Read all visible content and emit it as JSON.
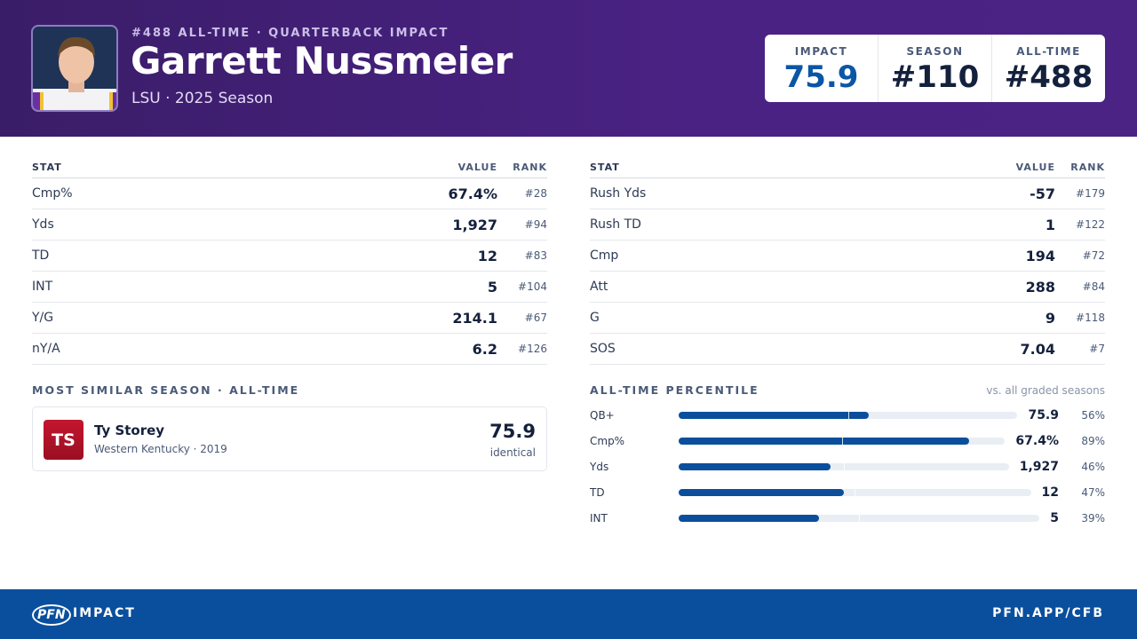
{
  "header": {
    "eyebrow": "#488 ALL-TIME · QUARTERBACK IMPACT",
    "name": "Garrett Nussmeier",
    "subtitle": "LSU · 2025 Season",
    "scores": [
      {
        "label": "IMPACT",
        "value": "75.9"
      },
      {
        "label": "SEASON",
        "value": "#110"
      },
      {
        "label": "ALL-TIME",
        "value": "#488"
      }
    ]
  },
  "left_table": {
    "headers": [
      "STAT",
      "VALUE",
      "RANK"
    ],
    "rows": [
      [
        "Cmp%",
        "67.4%",
        "#28"
      ],
      [
        "Yds",
        "1,927",
        "#94"
      ],
      [
        "TD",
        "12",
        "#83"
      ],
      [
        "INT",
        "5",
        "#104"
      ],
      [
        "Y/G",
        "214.1",
        "#67"
      ],
      [
        "nY/A",
        "6.2",
        "#126"
      ]
    ]
  },
  "right_table": {
    "headers": [
      "STAT",
      "VALUE",
      "RANK"
    ],
    "rows": [
      [
        "Rush Yds",
        "-57",
        "#179"
      ],
      [
        "Rush TD",
        "1",
        "#122"
      ],
      [
        "Cmp",
        "194",
        "#72"
      ],
      [
        "Att",
        "288",
        "#84"
      ],
      [
        "G",
        "9",
        "#118"
      ],
      [
        "SOS",
        "7.04",
        "#7"
      ]
    ]
  },
  "similar": {
    "title": "MOST SIMILAR SEASON · ALL-TIME",
    "initials": "TS",
    "name": "Ty Storey",
    "detail": "Western Kentucky · 2019",
    "score": "75.9",
    "note": "identical"
  },
  "percentile": {
    "title": "ALL-TIME PERCENTILE",
    "note": "vs. all graded seasons",
    "rows": [
      {
        "stat": "QB+",
        "value": "75.9",
        "percentile": 56,
        "percentile_label": "56%"
      },
      {
        "stat": "Cmp%",
        "value": "67.4%",
        "percentile": 89,
        "percentile_label": "89%"
      },
      {
        "stat": "Yds",
        "value": "1,927",
        "percentile": 46,
        "percentile_label": "46%"
      },
      {
        "stat": "TD",
        "value": "12",
        "percentile": 47,
        "percentile_label": "47%"
      },
      {
        "stat": "INT",
        "value": "5",
        "percentile": 39,
        "percentile_label": "39%"
      }
    ]
  },
  "footer": {
    "logo": "PFN",
    "brand": "IMPACT",
    "url": "PFN.APP/CFB"
  }
}
